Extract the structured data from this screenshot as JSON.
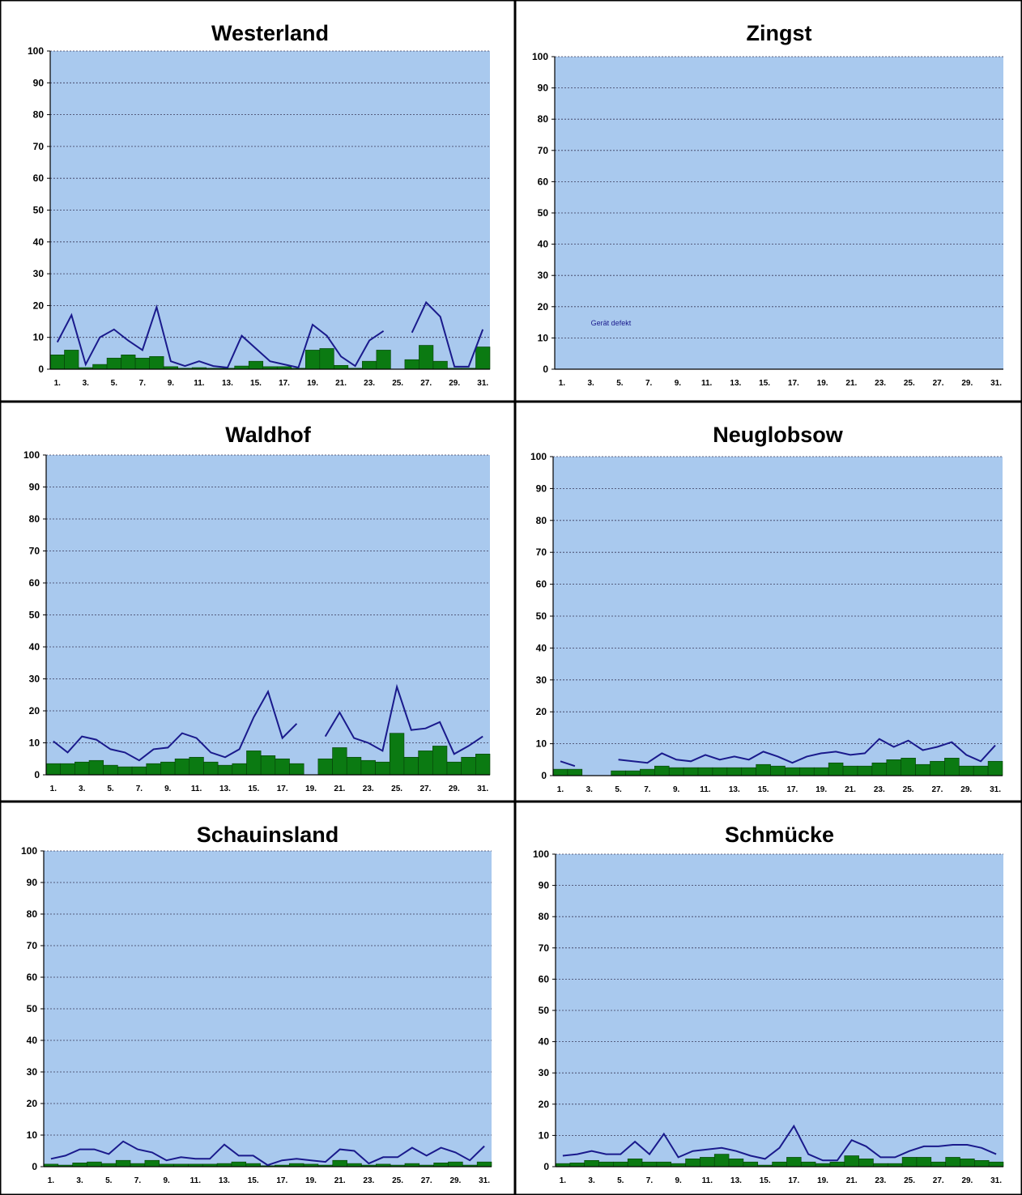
{
  "colors": {
    "plot_background": "#a9c9ee",
    "bar_fill": "#0b7a12",
    "bar_stroke": "#063f08",
    "line": "#1a1a8c",
    "grid": "#3a3a5a",
    "frame": "#000000"
  },
  "chart_data": [
    {
      "type": "bar",
      "title": "Westerland",
      "x_tick_labels": [
        "1.",
        "3.",
        "5.",
        "7.",
        "9.",
        "11.",
        "13.",
        "15.",
        "17.",
        "19.",
        "21.",
        "23.",
        "25.",
        "27.",
        "29.",
        "31."
      ],
      "y_ticks": [
        0,
        10,
        20,
        30,
        40,
        50,
        60,
        70,
        80,
        90,
        100
      ],
      "ylim": [
        0,
        100
      ],
      "grid": true,
      "series": [
        {
          "type": "bar",
          "values": [
            4.5,
            6,
            0.5,
            1.5,
            3.5,
            4.5,
            3.5,
            4,
            0.8,
            0.3,
            0.5,
            0.3,
            0.3,
            1,
            2.5,
            0.8,
            0.8,
            0.3,
            6,
            6.5,
            1.2,
            0.3,
            2.5,
            6,
            null,
            3,
            7.5,
            2.5,
            0.3,
            0.3,
            7
          ]
        },
        {
          "type": "line",
          "values": [
            8.5,
            17,
            1.5,
            10,
            12.5,
            9,
            6,
            19.5,
            2.5,
            1,
            2.5,
            1,
            0.5,
            10.5,
            6.5,
            2.5,
            1.5,
            0.5,
            14,
            10.5,
            4,
            1,
            9,
            12,
            null,
            11.5,
            21,
            16.5,
            0.8,
            0.8,
            12.5
          ]
        }
      ]
    },
    {
      "type": "bar",
      "title": "Zingst",
      "x_tick_labels": [
        "1.",
        "3.",
        "5.",
        "7.",
        "9.",
        "11.",
        "13.",
        "15.",
        "17.",
        "19.",
        "21.",
        "23.",
        "25.",
        "27.",
        "29.",
        "31."
      ],
      "y_ticks": [
        0,
        10,
        20,
        30,
        40,
        50,
        60,
        70,
        80,
        90,
        100
      ],
      "ylim": [
        0,
        100
      ],
      "grid": true,
      "annotations": [
        {
          "text": "Gerät defekt",
          "x": 3.5,
          "y": 14
        }
      ],
      "series": []
    },
    {
      "type": "bar",
      "title": "Waldhof",
      "x_tick_labels": [
        "1.",
        "3.",
        "5.",
        "7.",
        "9.",
        "11.",
        "13.",
        "15.",
        "17.",
        "19.",
        "21.",
        "23.",
        "25.",
        "27.",
        "29.",
        "31."
      ],
      "y_ticks": [
        0,
        10,
        20,
        30,
        40,
        50,
        60,
        70,
        80,
        90,
        100
      ],
      "ylim": [
        0,
        100
      ],
      "grid": true,
      "series": [
        {
          "type": "bar",
          "values": [
            3.5,
            3.5,
            4,
            4.5,
            3,
            2.5,
            2.5,
            3.5,
            4,
            5,
            5.5,
            4,
            3,
            3.5,
            7.5,
            6,
            5,
            3.5,
            null,
            5,
            8.5,
            5.5,
            4.5,
            4,
            13,
            5.5,
            7.5,
            9,
            4,
            5.5,
            6.5
          ]
        },
        {
          "type": "line",
          "values": [
            10.5,
            7,
            12,
            11,
            8,
            7,
            4.5,
            8,
            8.5,
            13,
            11.5,
            7,
            5.5,
            8,
            18,
            26,
            11.5,
            16,
            null,
            12,
            19.5,
            11.5,
            10,
            7.5,
            27.5,
            14,
            14.5,
            16.5,
            6.5,
            9,
            12
          ]
        }
      ]
    },
    {
      "type": "bar",
      "title": "Neuglobsow",
      "x_tick_labels": [
        "1.",
        "3.",
        "5.",
        "7.",
        "9.",
        "11.",
        "13.",
        "15.",
        "17.",
        "19.",
        "21.",
        "23.",
        "25.",
        "27.",
        "29.",
        "31."
      ],
      "y_ticks": [
        0,
        10,
        20,
        30,
        40,
        50,
        60,
        70,
        80,
        90,
        100
      ],
      "ylim": [
        0,
        100
      ],
      "grid": true,
      "series": [
        {
          "type": "bar",
          "values": [
            2,
            2,
            null,
            null,
            1.5,
            1.5,
            2,
            3,
            2.5,
            2.5,
            2.5,
            2.5,
            2.5,
            2.5,
            3.5,
            3,
            2.5,
            2.5,
            2.5,
            4,
            3,
            3,
            4,
            5,
            5.5,
            3.5,
            4.5,
            5.5,
            3,
            3,
            4.5
          ]
        },
        {
          "type": "line",
          "values": [
            4.5,
            3,
            null,
            null,
            5,
            4.5,
            4,
            7,
            5,
            4.5,
            6.5,
            5,
            6,
            5,
            7.5,
            6,
            4,
            6,
            7,
            7.5,
            6.5,
            7,
            11.5,
            9,
            11,
            8,
            9,
            10.5,
            6.5,
            4.5,
            9.5
          ]
        }
      ]
    },
    {
      "type": "bar",
      "title": "Schauinsland",
      "x_tick_labels": [
        "1.",
        "3.",
        "5.",
        "7.",
        "9.",
        "11.",
        "13.",
        "15.",
        "17.",
        "19.",
        "21.",
        "23.",
        "25.",
        "27.",
        "29.",
        "31."
      ],
      "y_ticks": [
        0,
        10,
        20,
        30,
        40,
        50,
        60,
        70,
        80,
        90,
        100
      ],
      "ylim": [
        0,
        100
      ],
      "grid": true,
      "series": [
        {
          "type": "bar",
          "values": [
            0.8,
            0.5,
            1.2,
            1.5,
            1,
            2,
            1,
            2,
            0.8,
            0.8,
            0.8,
            0.8,
            1,
            1.5,
            1,
            0.3,
            0.5,
            1,
            0.8,
            0.5,
            2,
            1,
            0.5,
            0.8,
            0.5,
            1,
            0.5,
            1.2,
            1.5,
            0.5,
            1.5
          ]
        },
        {
          "type": "line",
          "values": [
            2.5,
            3.5,
            5.5,
            5.5,
            4,
            8,
            5.5,
            4.5,
            2,
            3,
            2.5,
            2.5,
            7,
            3.5,
            3.5,
            0.5,
            2,
            2.5,
            2,
            1.5,
            5.5,
            5,
            1,
            3,
            3,
            6,
            3.5,
            6,
            4.5,
            2,
            6.5
          ]
        }
      ]
    },
    {
      "type": "bar",
      "title": "Schmücke",
      "x_tick_labels": [
        "1.",
        "3.",
        "5.",
        "7.",
        "9.",
        "11.",
        "13.",
        "15.",
        "17.",
        "19.",
        "21.",
        "23.",
        "25.",
        "27.",
        "29.",
        "31."
      ],
      "y_ticks": [
        0,
        10,
        20,
        30,
        40,
        50,
        60,
        70,
        80,
        90,
        100
      ],
      "ylim": [
        0,
        100
      ],
      "grid": true,
      "series": [
        {
          "type": "bar",
          "values": [
            1,
            1.2,
            2,
            1.5,
            1.5,
            2.5,
            1.5,
            1.5,
            1,
            2.5,
            3,
            4,
            2.5,
            1.5,
            0.5,
            1.5,
            3,
            1.5,
            1,
            1.5,
            3.5,
            2.5,
            1,
            1,
            3,
            3,
            1.5,
            3,
            2.5,
            2,
            1.5
          ]
        },
        {
          "type": "line",
          "values": [
            3.5,
            4,
            5,
            4,
            4,
            8,
            4,
            10.5,
            3,
            5,
            5.5,
            6,
            5,
            3.5,
            2.5,
            6,
            13,
            4,
            2,
            2,
            8.5,
            6.5,
            3,
            3,
            5,
            6.5,
            6.5,
            7,
            7,
            6,
            4
          ]
        }
      ]
    }
  ]
}
